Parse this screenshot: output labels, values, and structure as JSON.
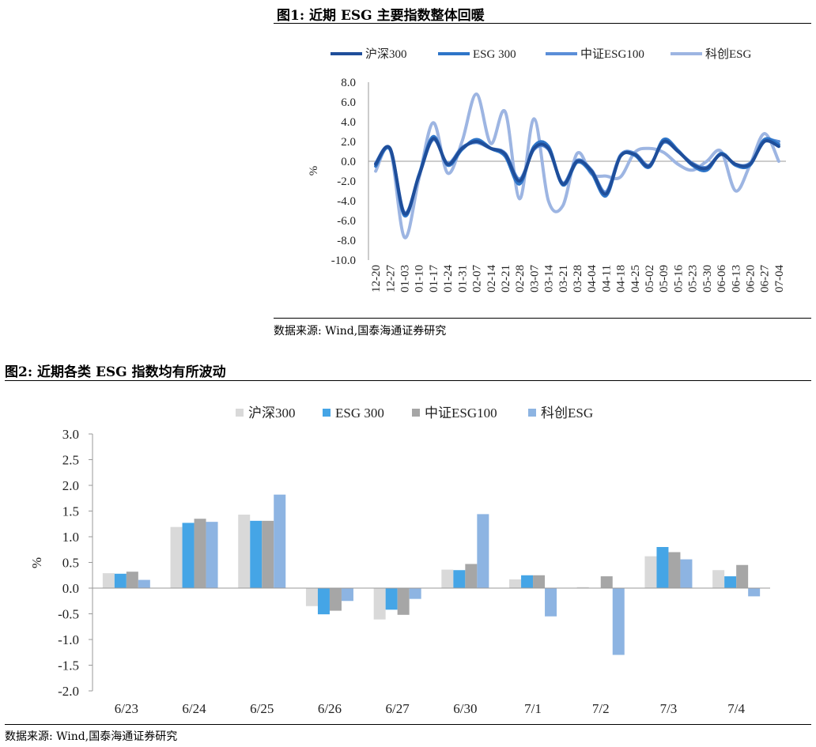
{
  "figure1": {
    "title": "图1:  近期 ESG 主要指数整体回暖",
    "source": "数据来源:  Wind,国泰海通证券研究",
    "chart_data": {
      "type": "line",
      "ylabel": "%",
      "ylim": [
        -10,
        8
      ],
      "yticks": [
        8,
        6,
        4,
        2,
        0,
        -2,
        -4,
        -6,
        -8,
        -10
      ],
      "ytick_labels": [
        "8.0",
        "6.0",
        "4.0",
        "2.0",
        "0.0",
        "-2.0",
        "-4.0",
        "-6.0",
        "-8.0",
        "-10.0"
      ],
      "categories": [
        "12-20",
        "12-27",
        "01-03",
        "01-10",
        "01-17",
        "01-24",
        "01-31",
        "02-07",
        "02-14",
        "02-21",
        "02-28",
        "03-07",
        "03-14",
        "03-21",
        "03-28",
        "04-04",
        "04-11",
        "04-18",
        "04-25",
        "05-02",
        "05-09",
        "05-16",
        "05-23",
        "05-30",
        "06-06",
        "06-13",
        "06-20",
        "06-27",
        "07-04"
      ],
      "series": [
        {
          "name": "沪深300",
          "color": "#1F4E9A",
          "values": [
            -0.3,
            1.3,
            -5.3,
            -1.5,
            2.3,
            -0.3,
            1.3,
            2.0,
            1.3,
            0.7,
            -2.0,
            1.3,
            1.3,
            -2.3,
            0.0,
            -1.0,
            -3.3,
            0.5,
            0.7,
            -0.5,
            2.0,
            1.0,
            -0.3,
            -0.7,
            0.7,
            -0.3,
            -0.3,
            2.0,
            1.5
          ]
        },
        {
          "name": "ESG 300",
          "color": "#2E75C8",
          "values": [
            -0.5,
            1.2,
            -5.5,
            -1.4,
            2.5,
            -0.4,
            1.2,
            2.2,
            1.3,
            0.5,
            -2.3,
            1.5,
            1.5,
            -2.4,
            -0.1,
            -1.2,
            -3.5,
            0.5,
            0.6,
            -0.6,
            2.2,
            1.1,
            -0.4,
            -0.9,
            0.8,
            -0.4,
            -0.4,
            2.2,
            1.7
          ]
        },
        {
          "name": "中证ESG100",
          "color": "#5B8ED8",
          "values": [
            -0.2,
            1.3,
            -5.2,
            -1.5,
            2.2,
            -0.2,
            1.4,
            1.9,
            1.3,
            0.8,
            -1.8,
            1.2,
            1.2,
            -2.2,
            0.1,
            -0.9,
            -3.1,
            0.6,
            0.8,
            -0.4,
            1.9,
            1.0,
            -0.2,
            -0.6,
            0.7,
            -0.3,
            -0.2,
            2.0,
            2.0
          ]
        },
        {
          "name": "科创ESG",
          "color": "#9DB5E2",
          "values": [
            -1.0,
            1.2,
            -7.7,
            -1.8,
            3.9,
            -1.2,
            2.0,
            6.8,
            1.8,
            5.0,
            -3.8,
            4.3,
            -4.0,
            -4.5,
            0.8,
            -1.3,
            -1.5,
            -1.6,
            0.9,
            1.3,
            0.9,
            -0.3,
            -0.9,
            0.0,
            1.0,
            -3.0,
            -0.4,
            2.8,
            0.0
          ]
        }
      ]
    }
  },
  "figure2": {
    "title": "图2:  近期各类 ESG 指数均有所波动",
    "source": "数据来源:  Wind,国泰海通证券研究",
    "chart_data": {
      "type": "bar",
      "ylabel": "%",
      "ylim": [
        -2.0,
        3.0
      ],
      "yticks": [
        3.0,
        2.5,
        2.0,
        1.5,
        1.0,
        0.5,
        0.0,
        -0.5,
        -1.0,
        -1.5,
        -2.0
      ],
      "ytick_labels": [
        "3.0",
        "2.5",
        "2.0",
        "1.5",
        "1.0",
        "0.5",
        "0.0",
        "-0.5",
        "-1.0",
        "-1.5",
        "-2.0"
      ],
      "categories": [
        "6/23",
        "6/24",
        "6/25",
        "6/26",
        "6/27",
        "6/30",
        "7/1",
        "7/2",
        "7/3",
        "7/4"
      ],
      "series": [
        {
          "name": "沪深300",
          "color": "#D9D9D9",
          "values": [
            0.29,
            1.19,
            1.43,
            -0.35,
            -0.61,
            0.36,
            0.17,
            0.02,
            0.62,
            0.35
          ]
        },
        {
          "name": "ESG 300",
          "color": "#45A5E6",
          "values": [
            0.28,
            1.27,
            1.31,
            -0.51,
            -0.42,
            0.35,
            0.25,
            0.0,
            0.8,
            0.23
          ]
        },
        {
          "name": "中证ESG100",
          "color": "#A6A6A6",
          "values": [
            0.32,
            1.35,
            1.31,
            -0.44,
            -0.52,
            0.47,
            0.25,
            0.23,
            0.7,
            0.45
          ]
        },
        {
          "name": "科创ESG",
          "color": "#8DB4E2",
          "values": [
            0.16,
            1.29,
            1.82,
            -0.25,
            -0.21,
            1.44,
            -0.55,
            -1.3,
            0.56,
            -0.16
          ]
        }
      ]
    }
  }
}
